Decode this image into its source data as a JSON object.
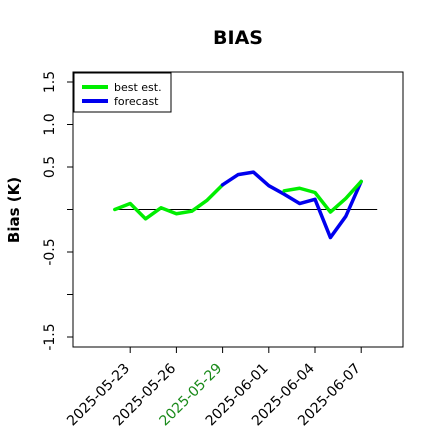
{
  "chart_data": {
    "type": "line",
    "title": "BIAS",
    "xlabel": "",
    "ylabel": "Bias (K)",
    "ylim": [
      -1.5,
      1.5
    ],
    "yticks": [
      -1.5,
      -1.0,
      -0.5,
      0.0,
      0.5,
      1.0,
      1.5
    ],
    "ytick_labels": [
      "-1.5",
      "",
      "-0.5",
      "",
      "0.5",
      "1.0",
      "1.5"
    ],
    "xlim": [
      "2025-05-20",
      "2025-06-09"
    ],
    "xtick_labels": [
      "2025-05-23",
      "2025-05-26",
      "2025-05-29",
      "2025-06-01",
      "2025-06-04",
      "2025-06-07"
    ],
    "xtick_highlight": "2025-05-29",
    "highlight_color": "#1a8a1a",
    "reference_line": 0,
    "legend_position": "top-left",
    "series": [
      {
        "name": "best est.",
        "color": "#00ee00",
        "x": [
          "2025-05-22",
          "2025-05-23",
          "2025-05-24",
          "2025-05-25",
          "2025-05-26",
          "2025-05-27",
          "2025-05-28",
          "2025-05-29"
        ],
        "values": [
          0.0,
          0.07,
          -0.11,
          0.02,
          -0.05,
          -0.02,
          0.11,
          0.29
        ]
      },
      {
        "name": "forecast",
        "color": "#0000ee",
        "x": [
          "2025-05-29",
          "2025-05-30",
          "2025-05-31",
          "2025-06-01",
          "2025-06-02",
          "2025-06-03",
          "2025-06-04",
          "2025-06-05",
          "2025-06-06",
          "2025-06-07"
        ],
        "values": [
          0.29,
          0.41,
          0.44,
          0.28,
          0.18,
          0.07,
          0.12,
          -0.33,
          -0.08,
          0.33
        ]
      },
      {
        "name": "",
        "color": "#00ee00",
        "x": [
          "2025-06-02",
          "2025-06-03",
          "2025-06-04",
          "2025-06-05",
          "2025-06-06",
          "2025-06-07"
        ],
        "values": [
          0.22,
          0.25,
          0.2,
          -0.03,
          0.13,
          0.33
        ]
      }
    ]
  }
}
